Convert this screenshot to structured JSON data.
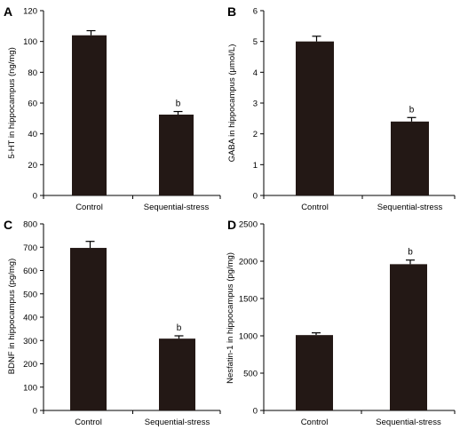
{
  "chart_data": [
    {
      "panel": "A",
      "type": "bar",
      "categories": [
        "Control",
        "Sequential-stress"
      ],
      "values": [
        104,
        52.5
      ],
      "errors": [
        3,
        2
      ],
      "annotations": [
        "",
        "b"
      ],
      "ylabel": "5-HT in hippocampus (ng/mg)",
      "xlabel": "",
      "ylim": [
        0,
        120
      ],
      "yticks": [
        "0",
        "20",
        "40",
        "60",
        "80",
        "100",
        "120"
      ],
      "bar_color": "#231815"
    },
    {
      "panel": "B",
      "type": "bar",
      "categories": [
        "Control",
        "Sequential-stress"
      ],
      "values": [
        5.0,
        2.4
      ],
      "errors": [
        0.17,
        0.13
      ],
      "annotations": [
        "",
        "b"
      ],
      "ylabel": "GABA in hippocampus (μmol/L)",
      "xlabel": "",
      "ylim": [
        0,
        6
      ],
      "yticks": [
        "0",
        "1",
        "2",
        "3",
        "4",
        "5",
        "6"
      ],
      "bar_color": "#231815"
    },
    {
      "panel": "C",
      "type": "bar",
      "categories": [
        "Control",
        "Sequential-stress"
      ],
      "values": [
        697,
        308
      ],
      "errors": [
        28,
        12
      ],
      "annotations": [
        "",
        "b"
      ],
      "ylabel": "BDNF in hippocampus (pg/mg)",
      "xlabel": "",
      "ylim": [
        0,
        800
      ],
      "yticks": [
        "0",
        "100",
        "200",
        "300",
        "400",
        "500",
        "600",
        "700",
        "800"
      ],
      "bar_color": "#231815"
    },
    {
      "panel": "D",
      "type": "bar",
      "categories": [
        "Control",
        "Sequential-stress"
      ],
      "values": [
        1010,
        1960
      ],
      "errors": [
        30,
        55
      ],
      "annotations": [
        "",
        "b"
      ],
      "ylabel": "Nesfatin-1 in hippocampus (pg/mg)",
      "xlabel": "",
      "ylim": [
        0,
        2500
      ],
      "yticks": [
        "0",
        "500",
        "1000",
        "1500",
        "2000",
        "2500"
      ],
      "bar_color": "#231815"
    }
  ]
}
